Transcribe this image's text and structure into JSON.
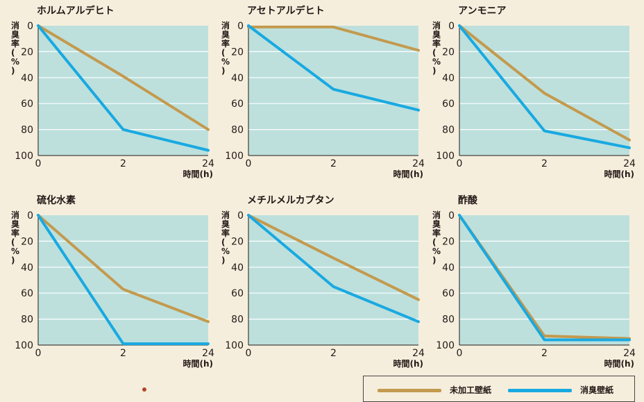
{
  "colors": {
    "background": "#f6eedd",
    "plot_area": "#bde0dd",
    "gridline": "#ffffff",
    "untreated": "#c39a4e",
    "deodorizing": "#19a9e1",
    "ink": "#231815",
    "decor": "#b4442a"
  },
  "chart_data": [
    {
      "type": "line",
      "title": "ホルムアルデヒト",
      "x": [
        "0",
        "2",
        "24"
      ],
      "ylabel": "消臭率(%)",
      "xlabel": "時間(h)",
      "ylim": [
        0,
        100
      ],
      "y_inverted": true,
      "yticks": [
        "0",
        "20",
        "40",
        "60",
        "80",
        "100"
      ],
      "series": [
        {
          "name": "未加工壁紙",
          "values": [
            0,
            39,
            80
          ]
        },
        {
          "name": "消臭壁紙",
          "values": [
            0,
            80,
            96
          ]
        }
      ]
    },
    {
      "type": "line",
      "title": "アセトアルデヒト",
      "x": [
        "0",
        "2",
        "24"
      ],
      "ylabel": "消臭率(%)",
      "xlabel": "時間(h)",
      "ylim": [
        0,
        100
      ],
      "y_inverted": true,
      "yticks": [
        "0",
        "20",
        "40",
        "60",
        "80",
        "100"
      ],
      "series": [
        {
          "name": "未加工壁紙",
          "values": [
            1,
            1,
            19
          ]
        },
        {
          "name": "消臭壁紙",
          "values": [
            0,
            49,
            65
          ]
        }
      ]
    },
    {
      "type": "line",
      "title": "アンモニア",
      "x": [
        "0",
        "2",
        "24"
      ],
      "ylabel": "消臭率(%)",
      "xlabel": "時間(h)",
      "ylim": [
        0,
        100
      ],
      "y_inverted": true,
      "yticks": [
        "0",
        "20",
        "40",
        "60",
        "80",
        "100"
      ],
      "series": [
        {
          "name": "未加工壁紙",
          "values": [
            0,
            52,
            88
          ]
        },
        {
          "name": "消臭壁紙",
          "values": [
            0,
            81,
            94
          ]
        }
      ]
    },
    {
      "type": "line",
      "title": "硫化水素",
      "x": [
        "0",
        "2",
        "24"
      ],
      "ylabel": "消臭率(%)",
      "xlabel": "時間(h)",
      "ylim": [
        0,
        100
      ],
      "y_inverted": true,
      "yticks": [
        "0",
        "20",
        "40",
        "60",
        "80",
        "100"
      ],
      "series": [
        {
          "name": "未加工壁紙",
          "values": [
            0,
            57,
            82
          ]
        },
        {
          "name": "消臭壁紙",
          "values": [
            0,
            99,
            99
          ]
        }
      ]
    },
    {
      "type": "line",
      "title": "メチルメルカプタン",
      "x": [
        "0",
        "2",
        "24"
      ],
      "ylabel": "消臭率(%)",
      "xlabel": "時間(h)",
      "ylim": [
        0,
        100
      ],
      "y_inverted": true,
      "yticks": [
        "0",
        "20",
        "40",
        "60",
        "80",
        "100"
      ],
      "series": [
        {
          "name": "未加工壁紙",
          "values": [
            0,
            33,
            65
          ]
        },
        {
          "name": "消臭壁紙",
          "values": [
            0,
            55,
            82
          ]
        }
      ]
    },
    {
      "type": "line",
      "title": "酢酸",
      "x": [
        "0",
        "2",
        "24"
      ],
      "ylabel": "消臭率(%)",
      "xlabel": "時間(h)",
      "ylim": [
        0,
        100
      ],
      "y_inverted": true,
      "yticks": [
        "0",
        "20",
        "40",
        "60",
        "80",
        "100"
      ],
      "series": [
        {
          "name": "未加工壁紙",
          "values": [
            0,
            93,
            95
          ]
        },
        {
          "name": "消臭壁紙",
          "values": [
            0,
            96,
            96
          ]
        }
      ]
    }
  ],
  "legend": {
    "untreated_label": "未加工壁紙",
    "deodorizing_label": "消臭壁紙"
  }
}
